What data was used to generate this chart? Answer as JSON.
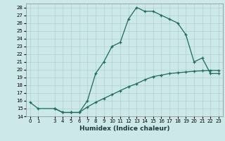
{
  "xlabel": "Humidex (Indice chaleur)",
  "background_color": "#cce8e8",
  "line_color": "#1a6b5a",
  "grid_color": "#b0d0d0",
  "line1_x": [
    0,
    1,
    3,
    4,
    5,
    6,
    7,
    8,
    9,
    10,
    11,
    12,
    13,
    14,
    15,
    16,
    17,
    18,
    19,
    20,
    21,
    22,
    23
  ],
  "line1_y": [
    15.8,
    15.0,
    15.0,
    14.5,
    14.5,
    14.5,
    16.0,
    19.5,
    21.0,
    23.0,
    23.5,
    26.5,
    28.0,
    27.5,
    27.5,
    27.0,
    26.5,
    26.0,
    24.5,
    21.0,
    21.5,
    19.5,
    19.5
  ],
  "line2_x": [
    3,
    4,
    5,
    6,
    7,
    8,
    9,
    10,
    11,
    12,
    13,
    14,
    15,
    16,
    17,
    18,
    19,
    20,
    21,
    22,
    23
  ],
  "line2_y": [
    15.0,
    14.5,
    14.5,
    14.5,
    15.2,
    15.8,
    16.3,
    16.8,
    17.3,
    17.8,
    18.2,
    18.7,
    19.1,
    19.3,
    19.5,
    19.6,
    19.7,
    19.8,
    19.85,
    19.9,
    19.9
  ],
  "xlim": [
    -0.5,
    23.5
  ],
  "ylim": [
    14,
    28.5
  ],
  "yticks": [
    14,
    15,
    16,
    17,
    18,
    19,
    20,
    21,
    22,
    23,
    24,
    25,
    26,
    27,
    28
  ],
  "xticks": [
    0,
    1,
    3,
    4,
    5,
    6,
    7,
    8,
    9,
    10,
    11,
    12,
    13,
    14,
    15,
    16,
    17,
    18,
    19,
    20,
    21,
    22,
    23
  ]
}
